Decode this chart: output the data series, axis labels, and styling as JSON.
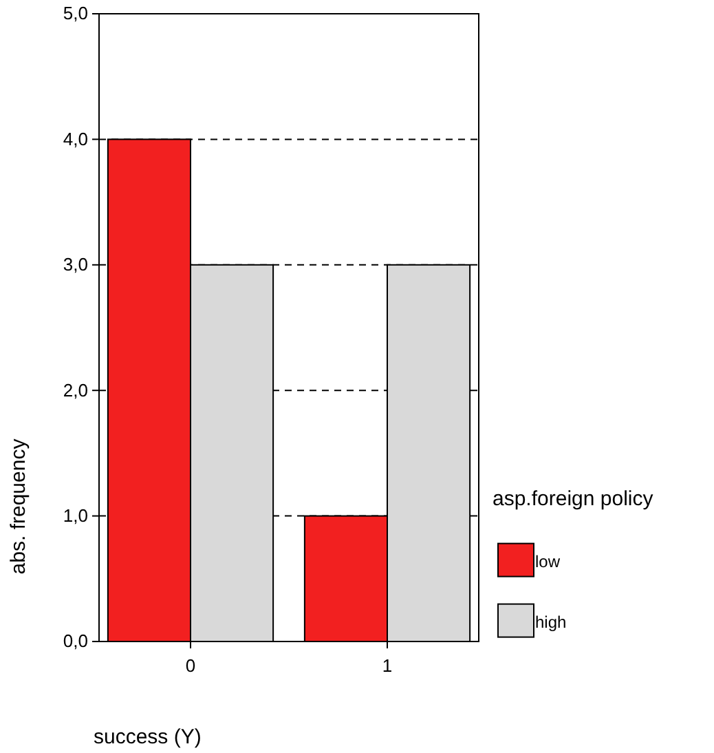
{
  "chart_data": {
    "type": "bar",
    "xlabel": "success (Y)",
    "ylabel": "abs. frequency",
    "legend_title": "asp.foreign policy",
    "categories": [
      "0",
      "1"
    ],
    "series": [
      {
        "name": "low",
        "color": "#f22020",
        "values": [
          4,
          1
        ]
      },
      {
        "name": "high",
        "color": "#d9d9d9",
        "values": [
          3,
          3
        ]
      }
    ],
    "ylim": [
      0,
      5
    ],
    "yticks": [
      {
        "value": 0,
        "label": "0,0"
      },
      {
        "value": 1,
        "label": "1,0"
      },
      {
        "value": 2,
        "label": "2,0"
      },
      {
        "value": 3,
        "label": "3,0"
      },
      {
        "value": 4,
        "label": "4,0"
      },
      {
        "value": 5,
        "label": "5,0"
      }
    ],
    "grid": "y",
    "line_style": "dashed",
    "legend": "right"
  }
}
